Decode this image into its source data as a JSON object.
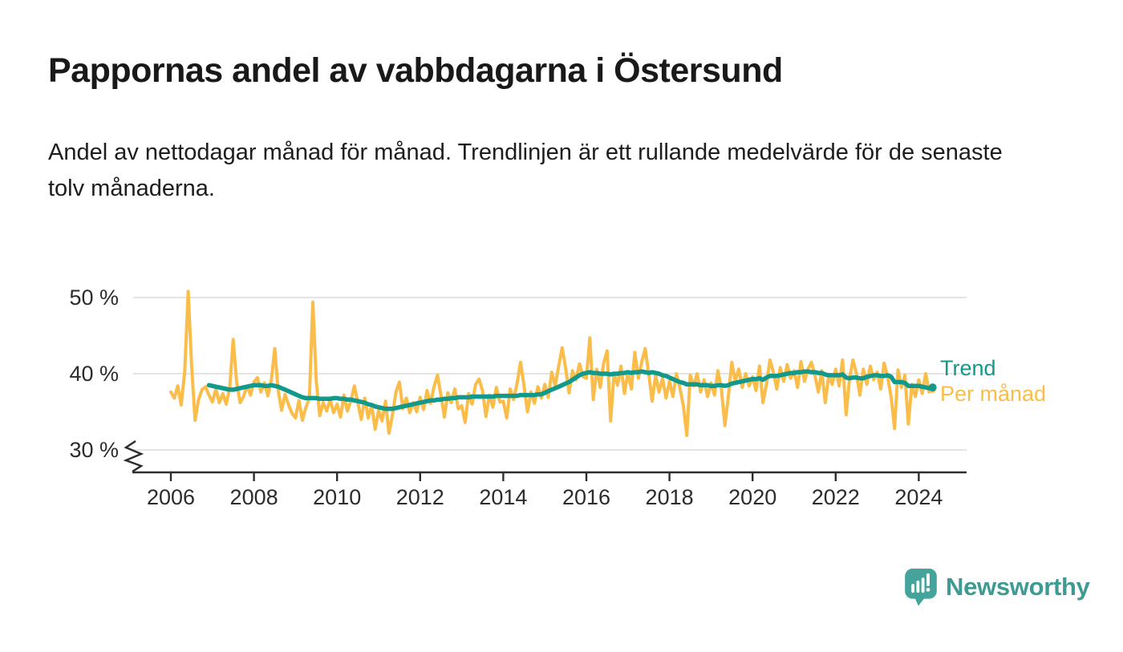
{
  "chart_data": {
    "type": "line",
    "title": "Pappornas andel av vabbdagarna i Östersund",
    "subtitle": "Andel av nettodagar månad för månad. Trendlinjen är ett rullande medelvärde för de senaste tolv månaderna.",
    "unit": "%",
    "x_range": [
      "2006-01",
      "2024-05"
    ],
    "ylim": [
      27,
      52
    ],
    "axis_break": true,
    "grid": "horizontal",
    "legend_position": "right-of-line-end",
    "yticks": [
      {
        "value": 30,
        "label": "30 %"
      },
      {
        "value": 40,
        "label": "40 %"
      },
      {
        "value": 50,
        "label": "50 %"
      }
    ],
    "xticks": [
      {
        "year": 2006,
        "label": "2006"
      },
      {
        "year": 2008,
        "label": "2008"
      },
      {
        "year": 2010,
        "label": "2010"
      },
      {
        "year": 2012,
        "label": "2012"
      },
      {
        "year": 2014,
        "label": "2014"
      },
      {
        "year": 2016,
        "label": "2016"
      },
      {
        "year": 2018,
        "label": "2018"
      },
      {
        "year": 2020,
        "label": "2020"
      },
      {
        "year": 2022,
        "label": "2022"
      },
      {
        "year": 2024,
        "label": "2024"
      }
    ],
    "series": [
      {
        "name": "Per månad",
        "color": "#FBBD4A",
        "start_month_index": 0,
        "start_label": "2006-01",
        "values": [
          37.6,
          36.8,
          38.4,
          35.9,
          40.3,
          50.8,
          41.0,
          33.9,
          36.6,
          37.9,
          38.3,
          37.2,
          36.3,
          38.0,
          36.2,
          37.4,
          36.0,
          38.2,
          44.5,
          38.9,
          36.2,
          37.0,
          38.4,
          37.2,
          38.9,
          39.5,
          37.6,
          38.8,
          37.1,
          39.1,
          43.3,
          37.8,
          35.2,
          37.3,
          35.9,
          34.8,
          34.2,
          36.5,
          33.9,
          35.6,
          36.8,
          49.4,
          39.0,
          34.5,
          36.2,
          35.1,
          36.6,
          34.9,
          36.0,
          34.3,
          37.2,
          35.1,
          36.5,
          38.4,
          36.2,
          34.0,
          36.8,
          34.2,
          35.8,
          32.7,
          35.2,
          33.8,
          36.4,
          32.2,
          34.6,
          37.6,
          38.9,
          35.4,
          36.8,
          34.9,
          36.2,
          35.0,
          36.9,
          35.3,
          37.8,
          36.1,
          38.3,
          39.8,
          37.2,
          34.3,
          37.5,
          36.2,
          38.0,
          35.4,
          35.8,
          33.6,
          37.4,
          36.0,
          38.6,
          39.3,
          37.8,
          34.4,
          37.2,
          35.6,
          38.2,
          36.3,
          36.4,
          34.2,
          38.0,
          36.6,
          38.8,
          41.5,
          38.4,
          35.0,
          37.6,
          36.1,
          38.3,
          36.8,
          38.6,
          36.9,
          40.2,
          38.4,
          41.0,
          43.4,
          40.8,
          37.5,
          40.4,
          39.2,
          41.3,
          39.6,
          39.4,
          44.7,
          36.6,
          40.6,
          38.2,
          41.4,
          43.0,
          33.8,
          40.0,
          38.5,
          41.0,
          37.4,
          40.2,
          38.0,
          42.8,
          39.4,
          41.6,
          43.3,
          40.0,
          36.4,
          39.8,
          37.6,
          39.4,
          36.8,
          39.0,
          37.0,
          40.0,
          38.2,
          35.8,
          31.9,
          39.8,
          38.4,
          40.0,
          37.6,
          39.2,
          37.0,
          38.8,
          37.2,
          40.4,
          38.0,
          33.2,
          37.0,
          41.5,
          39.0,
          40.6,
          38.2,
          40.0,
          38.4,
          39.6,
          37.8,
          41.0,
          36.2,
          38.6,
          41.8,
          40.2,
          38.0,
          40.8,
          39.0,
          41.2,
          39.4,
          40.4,
          38.2,
          41.6,
          39.0,
          40.6,
          41.5,
          39.8,
          37.6,
          40.4,
          36.2,
          39.8,
          38.6,
          40.6,
          38.4,
          41.8,
          34.6,
          39.4,
          41.8,
          40.0,
          37.2,
          40.6,
          38.6,
          41.0,
          39.2,
          40.2,
          38.0,
          41.4,
          39.6,
          37.0,
          32.8,
          40.5,
          38.2,
          39.8,
          33.4,
          38.6,
          37.0,
          39.2,
          37.4,
          40.0,
          37.6,
          37.9
        ]
      },
      {
        "name": "Trend",
        "color": "#12998B",
        "start_month_index": 11,
        "start_label": "2006-12",
        "values": [
          38.5,
          38.4,
          38.3,
          38.2,
          38.1,
          38.0,
          37.9,
          37.9,
          38.0,
          38.1,
          38.2,
          38.3,
          38.4,
          38.5,
          38.5,
          38.5,
          38.4,
          38.4,
          38.5,
          38.4,
          38.3,
          38.1,
          37.9,
          37.7,
          37.5,
          37.3,
          37.1,
          36.9,
          36.8,
          36.8,
          36.8,
          36.8,
          36.7,
          36.7,
          36.7,
          36.7,
          36.8,
          36.8,
          36.7,
          36.7,
          36.6,
          36.6,
          36.5,
          36.4,
          36.3,
          36.2,
          36.0,
          35.9,
          35.7,
          35.6,
          35.5,
          35.4,
          35.4,
          35.4,
          35.5,
          35.6,
          35.7,
          35.8,
          35.9,
          36.0,
          36.1,
          36.2,
          36.3,
          36.4,
          36.5,
          36.5,
          36.6,
          36.6,
          36.7,
          36.7,
          36.8,
          36.8,
          36.9,
          36.9,
          36.9,
          36.9,
          37.0,
          37.0,
          37.0,
          37.0,
          37.0,
          37.0,
          37.0,
          37.1,
          37.1,
          37.1,
          37.1,
          37.1,
          37.1,
          37.1,
          37.2,
          37.2,
          37.2,
          37.2,
          37.2,
          37.3,
          37.3,
          37.5,
          37.7,
          37.9,
          38.1,
          38.3,
          38.5,
          38.7,
          38.9,
          39.2,
          39.5,
          39.8,
          40.0,
          40.1,
          40.2,
          40.1,
          40.1,
          40.0,
          40.0,
          40.0,
          39.9,
          40.0,
          40.0,
          40.1,
          40.1,
          40.2,
          40.1,
          40.2,
          40.2,
          40.3,
          40.2,
          40.1,
          40.2,
          40.1,
          40.0,
          39.8,
          39.7,
          39.5,
          39.3,
          39.1,
          38.9,
          38.8,
          38.6,
          38.6,
          38.6,
          38.6,
          38.5,
          38.5,
          38.5,
          38.4,
          38.4,
          38.5,
          38.5,
          38.4,
          38.5,
          38.7,
          38.8,
          38.9,
          39.0,
          39.1,
          39.2,
          39.3,
          39.3,
          39.4,
          39.2,
          39.5,
          39.7,
          39.7,
          39.7,
          39.8,
          39.9,
          40.0,
          40.1,
          40.1,
          40.2,
          40.2,
          40.3,
          40.3,
          40.2,
          40.2,
          40.1,
          40.1,
          39.9,
          39.8,
          39.8,
          39.8,
          39.8,
          39.9,
          39.5,
          39.4,
          39.5,
          39.5,
          39.4,
          39.4,
          39.6,
          39.7,
          39.8,
          39.8,
          39.7,
          39.7,
          39.8,
          39.6,
          38.9,
          38.9,
          38.9,
          38.8,
          38.4,
          38.4,
          38.4,
          38.4,
          38.3,
          38.2,
          38.1,
          38.2
        ]
      }
    ]
  },
  "footer": {
    "brand": "Newsworthy"
  },
  "colors": {
    "monthly_line": "#FBBD4A",
    "trend_line": "#12998B",
    "brand_teal": "#44A39A",
    "gridline": "#DCDCDC",
    "axis": "#2E2E2E",
    "text": "#1D1D1D"
  }
}
